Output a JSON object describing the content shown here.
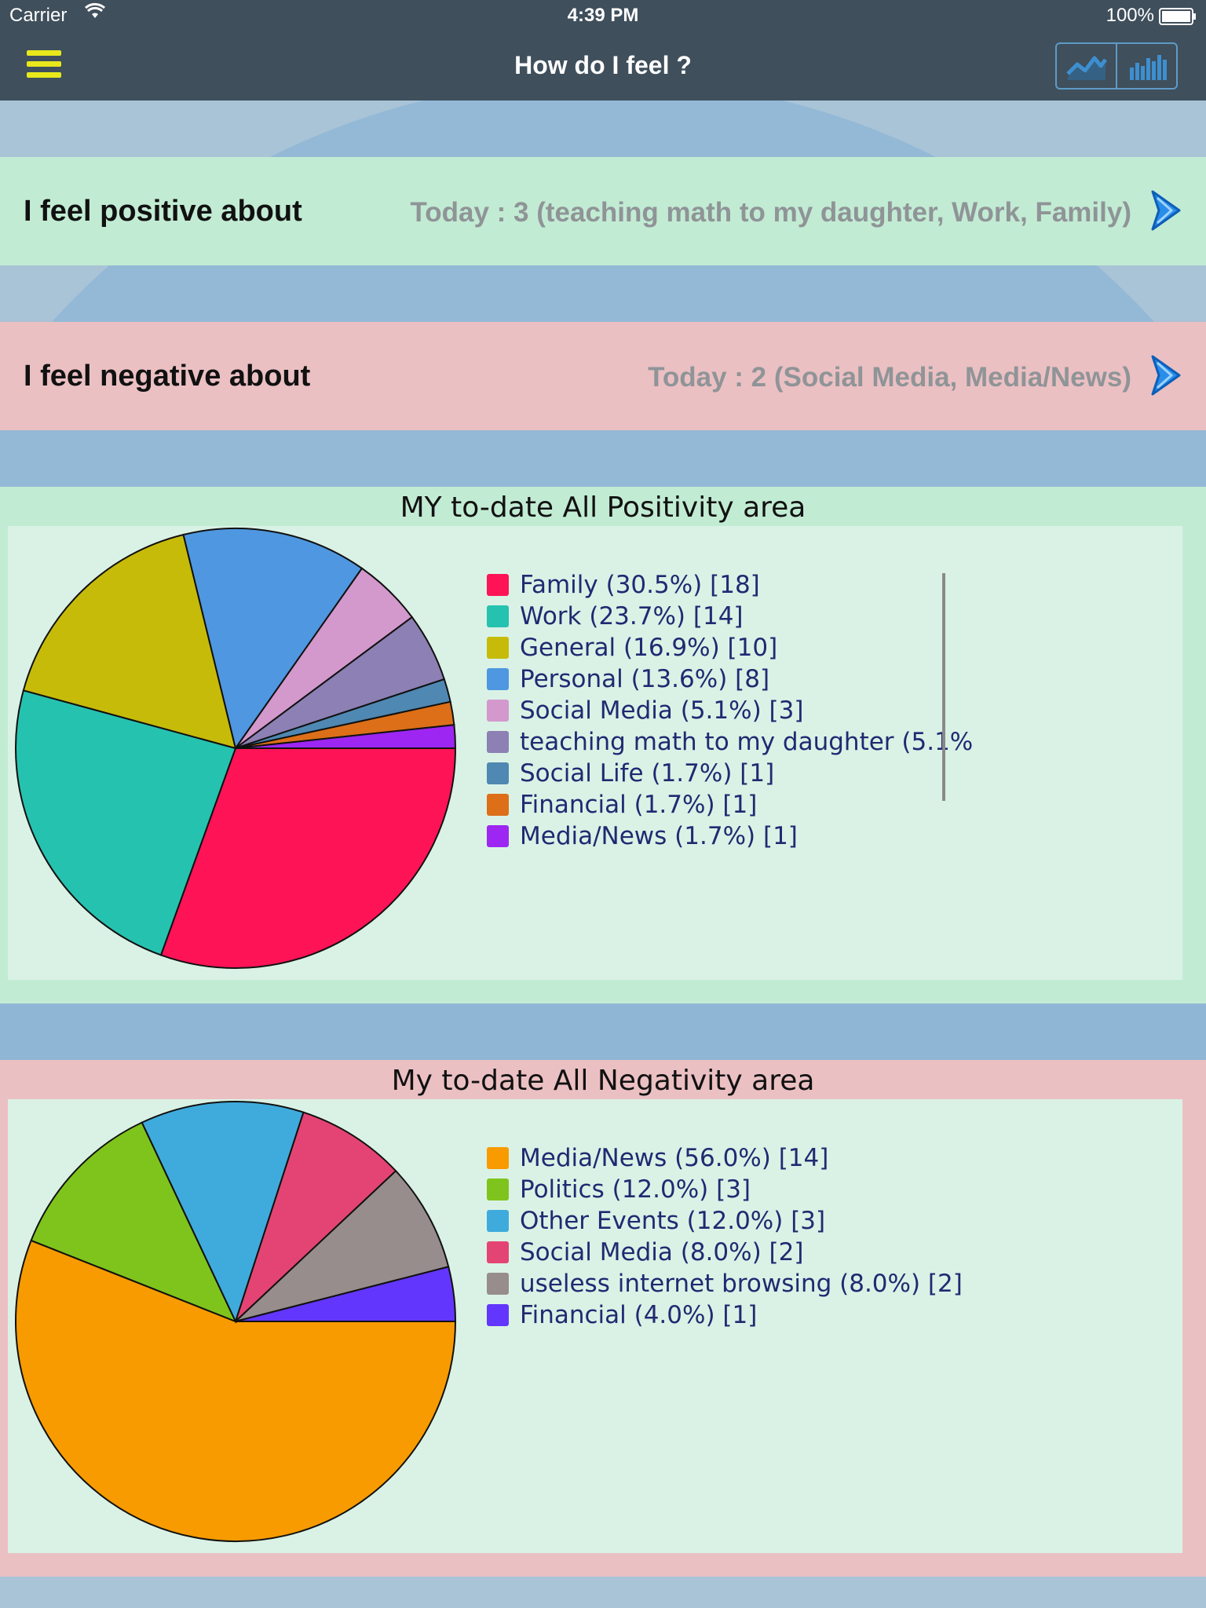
{
  "status_bar": {
    "carrier": "Carrier",
    "time": "4:39 PM",
    "battery": "100%"
  },
  "nav": {
    "title": "How do I feel ?",
    "menu_icon": "hamburger-icon",
    "buttons": [
      "line-chart-icon",
      "bar-chart-icon"
    ],
    "menu_color": "#e8e81c"
  },
  "positive_row": {
    "label": "I feel positive about",
    "value": "Today : 3 (teaching math to my daughter, Work, Family)"
  },
  "negative_row": {
    "label": "I feel negative about",
    "value": "Today : 2 (Social Media, Media/News)"
  },
  "positive_panel": {
    "title": "MY to-date All Positivity area"
  },
  "negative_panel": {
    "title": "My to-date All Negativity area"
  },
  "chart_data": [
    {
      "type": "pie",
      "title": "MY to-date All Positivity area",
      "labels": [
        "Family (30.5%) [18]",
        "Work (23.7%) [14]",
        "General (16.9%) [10]",
        "Personal (13.6%) [8]",
        "Social Media (5.1%) [3]",
        "teaching math to my daughter (5.1%",
        "Social Life (1.7%) [1]",
        "Financial (1.7%) [1]",
        "Media/News (1.7%) [1]"
      ],
      "values": [
        18,
        14,
        10,
        8,
        3,
        3,
        1,
        1,
        1
      ],
      "colors": [
        "#fe1357",
        "#26c2b0",
        "#c7bb0a",
        "#4f97e0",
        "#d398cc",
        "#8c80b4",
        "#4f88b2",
        "#dd6f18",
        "#9d26f2"
      ]
    },
    {
      "type": "pie",
      "title": "My to-date All Negativity area",
      "labels": [
        "Media/News (56.0%) [14]",
        "Politics (12.0%) [3]",
        "Other Events (12.0%) [3]",
        "Social Media (8.0%) [2]",
        "useless internet browsing  (8.0%) [2]",
        "Financial (4.0%) [1]"
      ],
      "values": [
        14,
        3,
        3,
        2,
        2,
        1
      ],
      "colors": [
        "#f79b00",
        "#7fc41c",
        "#3fabdc",
        "#e44473",
        "#978d8c",
        "#6336fe"
      ]
    }
  ]
}
